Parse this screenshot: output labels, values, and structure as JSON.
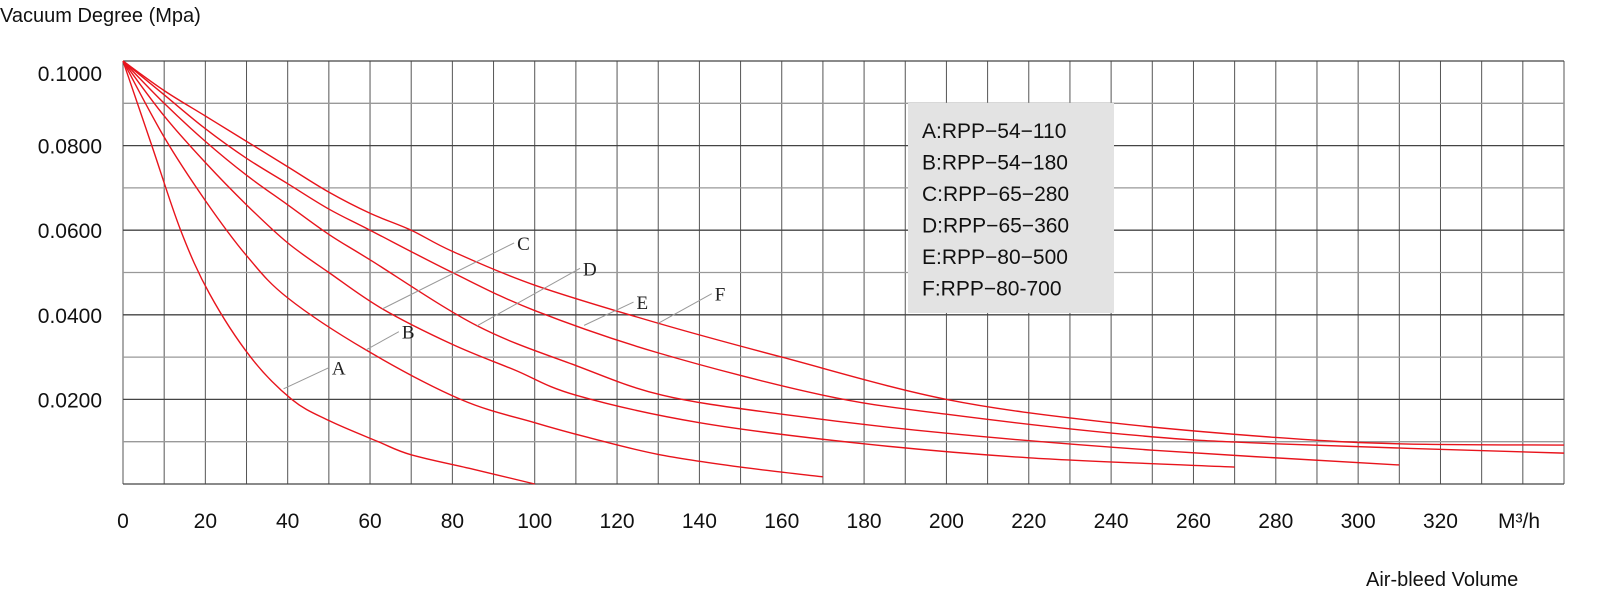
{
  "chart_data": {
    "type": "line",
    "title": "",
    "ylabel": "Vacuum Degree (Mpa)",
    "xlabel": "Air-bleed Volume",
    "x_unit": "M³/h",
    "xlim": [
      0,
      350
    ],
    "ylim": [
      0,
      0.1
    ],
    "grid": true,
    "x_grid_step": 10,
    "y_grid_step": 0.01,
    "x_ticks": [
      0,
      20,
      40,
      60,
      80,
      100,
      120,
      140,
      160,
      180,
      200,
      220,
      240,
      260,
      280,
      300,
      320
    ],
    "x_tick_labels": [
      "0",
      "20",
      "40",
      "60",
      "80",
      "100",
      "120",
      "140",
      "160",
      "180",
      "200",
      "220",
      "240",
      "260",
      "280",
      "300",
      "320"
    ],
    "y_ticks": [
      0.1,
      0.08,
      0.06,
      0.04,
      0.02
    ],
    "y_tick_labels": [
      "0.1000",
      "0.0800",
      "0.0600",
      "0.0400",
      "0.0200"
    ],
    "line_color": "#e8141c",
    "legend_position": "top-center-right",
    "legend": [
      "A:RPP−54−110",
      "B:RPP−54−180",
      "C:RPP−65−280",
      "D:RPP−65−360",
      "E:RPP−80−500",
      "F:RPP−80-700"
    ],
    "series": [
      {
        "name": "A",
        "x": [
          0,
          7,
          14,
          21,
          31,
          41,
          50,
          62,
          70,
          85,
          100
        ],
        "y": [
          0.1,
          0.08,
          0.06,
          0.045,
          0.03,
          0.02,
          0.015,
          0.01,
          0.0069,
          0.0035,
          0.0
        ]
      },
      {
        "name": "B",
        "x": [
          0,
          10,
          20,
          30,
          40,
          59,
          82,
          100,
          113,
          130,
          150,
          170
        ],
        "y": [
          0.1,
          0.082,
          0.067,
          0.054,
          0.044,
          0.0317,
          0.02,
          0.0145,
          0.011,
          0.007,
          0.004,
          0.0017
        ]
      },
      {
        "name": "C",
        "x": [
          0,
          10,
          20,
          30,
          40,
          50,
          63,
          80,
          95,
          110,
          140,
          180,
          220,
          270
        ],
        "y": [
          0.1,
          0.087,
          0.076,
          0.066,
          0.057,
          0.05,
          0.0414,
          0.033,
          0.027,
          0.021,
          0.0145,
          0.0095,
          0.0062,
          0.004
        ]
      },
      {
        "name": "D",
        "x": [
          0,
          10,
          20,
          30,
          40,
          50,
          60,
          86,
          110,
          131,
          160,
          200,
          250,
          310
        ],
        "y": [
          0.1,
          0.09,
          0.081,
          0.073,
          0.066,
          0.059,
          0.053,
          0.0374,
          0.028,
          0.021,
          0.0165,
          0.012,
          0.008,
          0.0045
        ]
      },
      {
        "name": "E",
        "x": [
          0,
          10,
          20,
          30,
          40,
          50,
          60,
          80,
          100,
          130,
          170,
          200,
          246,
          280,
          350
        ],
        "y": [
          0.1,
          0.092,
          0.084,
          0.077,
          0.071,
          0.065,
          0.06,
          0.05,
          0.041,
          0.031,
          0.021,
          0.0165,
          0.0115,
          0.0095,
          0.0073
        ]
      },
      {
        "name": "F",
        "x": [
          0,
          10,
          20,
          30,
          40,
          50,
          60,
          70,
          80,
          100,
          130,
          160,
          200,
          240,
          280,
          310,
          350
        ],
        "y": [
          0.1,
          0.093,
          0.087,
          0.081,
          0.075,
          0.069,
          0.064,
          0.06,
          0.055,
          0.047,
          0.038,
          0.03,
          0.02,
          0.0145,
          0.011,
          0.0095,
          0.0092
        ]
      }
    ],
    "annotations": [
      {
        "text": "A",
        "from": [
          39,
          0.0225
        ],
        "to": [
          50,
          0.0275
        ]
      },
      {
        "text": "B",
        "from": [
          59,
          0.0317
        ],
        "to": [
          67,
          0.036
        ]
      },
      {
        "text": "C",
        "from": [
          63,
          0.0414
        ],
        "to": [
          95,
          0.057
        ]
      },
      {
        "text": "D",
        "from": [
          86,
          0.0374
        ],
        "to": [
          111,
          0.051
        ]
      },
      {
        "text": "E",
        "from": [
          112,
          0.0375
        ],
        "to": [
          124,
          0.043
        ]
      },
      {
        "text": "F",
        "from": [
          130,
          0.038
        ],
        "to": [
          143,
          0.045
        ]
      }
    ]
  }
}
